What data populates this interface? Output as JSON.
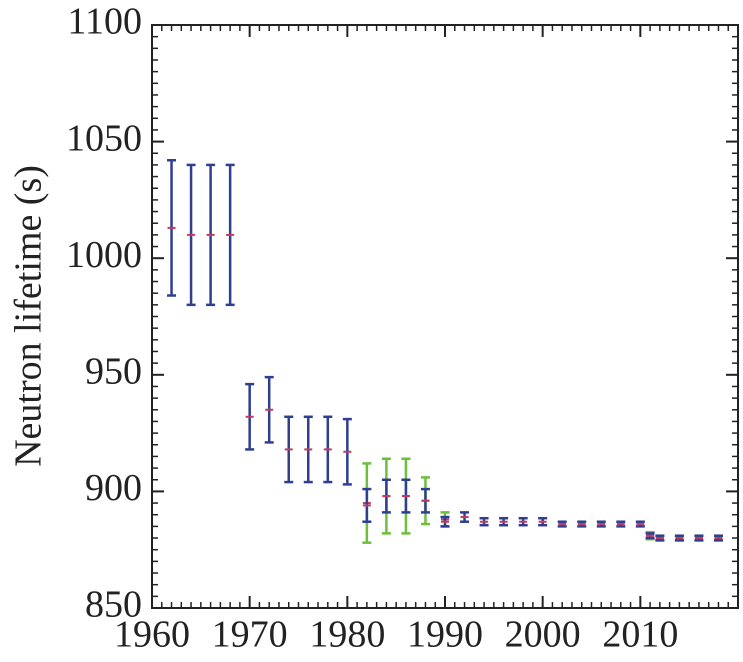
{
  "chart_data": {
    "type": "errorbar",
    "ylabel": "Neutron lifetime (s)",
    "xlim": [
      1960,
      2020
    ],
    "xticks": [
      1960,
      1970,
      1980,
      1990,
      2000,
      2010
    ],
    "ylim": [
      850,
      1100
    ],
    "yticks": [
      850,
      900,
      950,
      1000,
      1050,
      1100
    ],
    "center_color": "#c23a5e",
    "series": [
      {
        "color": "#6bbf3a",
        "x": [
          1982,
          1984,
          1986,
          1988,
          1990,
          2011,
          2012,
          2014,
          2016,
          2018
        ],
        "values": [
          895,
          898,
          898,
          896,
          888,
          881,
          880,
          880,
          880,
          880
        ],
        "errors": [
          17,
          16,
          16,
          10,
          3,
          1.5,
          1,
          1,
          1,
          1
        ]
      },
      {
        "color": "#2e3f91",
        "x": [
          1962,
          1964,
          1966,
          1968,
          1970,
          1972,
          1974,
          1976,
          1978,
          1980,
          1982,
          1984,
          1986,
          1988,
          1990,
          1992,
          1994,
          1996,
          1998,
          2000,
          2002,
          2004,
          2006,
          2008,
          2010,
          2011,
          2012,
          2014,
          2016,
          2018
        ],
        "values": [
          1013,
          1010,
          1010,
          1010,
          932,
          935,
          918,
          918,
          918,
          917,
          894,
          898,
          898,
          896,
          887,
          889,
          887,
          887,
          887,
          887,
          886,
          886,
          886,
          886,
          886,
          881,
          880,
          880,
          880,
          880
        ],
        "errors": [
          29,
          30,
          30,
          30,
          14,
          14,
          14,
          14,
          14,
          14,
          7,
          7,
          7,
          5,
          2,
          2,
          1.5,
          1.5,
          1.5,
          1.5,
          1,
          1,
          1,
          1,
          1,
          1,
          1,
          1,
          1,
          1
        ]
      }
    ]
  }
}
